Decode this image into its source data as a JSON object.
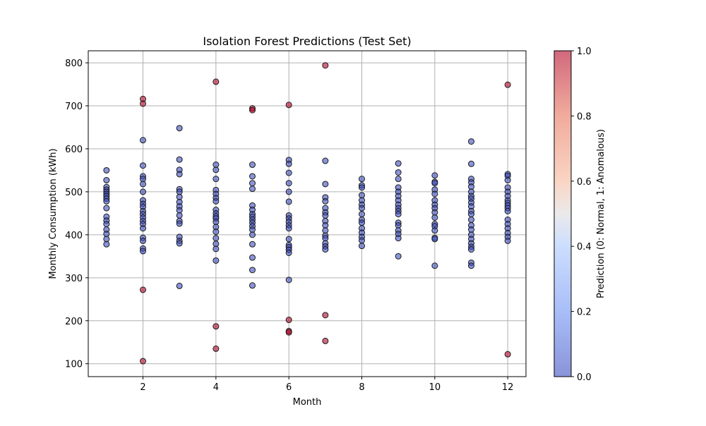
{
  "chart_data": {
    "type": "scatter",
    "title": "Isolation Forest Predictions (Test Set)",
    "xlabel": "Month",
    "ylabel": "Monthly Consumption (kWh)",
    "xlim": [
      0.5,
      12.5
    ],
    "ylim": [
      70,
      828
    ],
    "xticks": [
      2,
      4,
      6,
      8,
      10,
      12
    ],
    "yticks": [
      100,
      200,
      300,
      400,
      500,
      600,
      700,
      800
    ],
    "grid": true,
    "colorbar": {
      "label": "Prediction (0: Normal, 1: Anomalous)",
      "range": [
        0.0,
        1.0
      ],
      "ticks": [
        "0.0",
        "0.2",
        "0.4",
        "0.6",
        "0.8",
        "1.0"
      ],
      "colormap": "coolwarm",
      "alpha": 0.6
    },
    "colors": {
      "normal": "#3b4cc0",
      "anomalous": "#b40426"
    },
    "series": [
      {
        "prediction": 0,
        "points": [
          [
            1,
            550
          ],
          [
            1,
            527
          ],
          [
            1,
            511
          ],
          [
            1,
            505
          ],
          [
            1,
            500
          ],
          [
            1,
            495
          ],
          [
            1,
            490
          ],
          [
            1,
            484
          ],
          [
            1,
            478
          ],
          [
            1,
            462
          ],
          [
            1,
            442
          ],
          [
            1,
            433
          ],
          [
            1,
            425
          ],
          [
            1,
            412
          ],
          [
            1,
            402
          ],
          [
            1,
            390
          ],
          [
            1,
            378
          ],
          [
            2,
            620
          ],
          [
            2,
            561
          ],
          [
            2,
            536
          ],
          [
            2,
            530
          ],
          [
            2,
            518
          ],
          [
            2,
            500
          ],
          [
            2,
            480
          ],
          [
            2,
            472
          ],
          [
            2,
            465
          ],
          [
            2,
            455
          ],
          [
            2,
            448
          ],
          [
            2,
            440
          ],
          [
            2,
            432
          ],
          [
            2,
            425
          ],
          [
            2,
            415
          ],
          [
            2,
            393
          ],
          [
            2,
            386
          ],
          [
            2,
            368
          ],
          [
            2,
            362
          ],
          [
            3,
            648
          ],
          [
            3,
            575
          ],
          [
            3,
            551
          ],
          [
            3,
            541
          ],
          [
            3,
            506
          ],
          [
            3,
            500
          ],
          [
            3,
            488
          ],
          [
            3,
            476
          ],
          [
            3,
            466
          ],
          [
            3,
            457
          ],
          [
            3,
            445
          ],
          [
            3,
            432
          ],
          [
            3,
            426
          ],
          [
            3,
            395
          ],
          [
            3,
            386
          ],
          [
            3,
            380
          ],
          [
            3,
            281
          ],
          [
            4,
            563
          ],
          [
            4,
            551
          ],
          [
            4,
            530
          ],
          [
            4,
            504
          ],
          [
            4,
            495
          ],
          [
            4,
            486
          ],
          [
            4,
            478
          ],
          [
            4,
            458
          ],
          [
            4,
            450
          ],
          [
            4,
            443
          ],
          [
            4,
            438
          ],
          [
            4,
            430
          ],
          [
            4,
            418
          ],
          [
            4,
            407
          ],
          [
            4,
            392
          ],
          [
            4,
            379
          ],
          [
            4,
            367
          ],
          [
            4,
            340
          ],
          [
            5,
            563
          ],
          [
            5,
            536
          ],
          [
            5,
            520
          ],
          [
            5,
            507
          ],
          [
            5,
            468
          ],
          [
            5,
            458
          ],
          [
            5,
            448
          ],
          [
            5,
            442
          ],
          [
            5,
            435
          ],
          [
            5,
            428
          ],
          [
            5,
            420
          ],
          [
            5,
            412
          ],
          [
            5,
            400
          ],
          [
            5,
            378
          ],
          [
            5,
            347
          ],
          [
            5,
            318
          ],
          [
            5,
            282
          ],
          [
            6,
            574
          ],
          [
            6,
            565
          ],
          [
            6,
            544
          ],
          [
            6,
            520
          ],
          [
            6,
            500
          ],
          [
            6,
            477
          ],
          [
            6,
            445
          ],
          [
            6,
            438
          ],
          [
            6,
            430
          ],
          [
            6,
            422
          ],
          [
            6,
            415
          ],
          [
            6,
            390
          ],
          [
            6,
            376
          ],
          [
            6,
            371
          ],
          [
            6,
            365
          ],
          [
            6,
            358
          ],
          [
            6,
            295
          ],
          [
            7,
            572
          ],
          [
            7,
            518
          ],
          [
            7,
            487
          ],
          [
            7,
            478
          ],
          [
            7,
            462
          ],
          [
            7,
            452
          ],
          [
            7,
            445
          ],
          [
            7,
            432
          ],
          [
            7,
            422
          ],
          [
            7,
            410
          ],
          [
            7,
            398
          ],
          [
            7,
            392
          ],
          [
            7,
            380
          ],
          [
            7,
            373
          ],
          [
            7,
            366
          ],
          [
            8,
            530
          ],
          [
            8,
            515
          ],
          [
            8,
            510
          ],
          [
            8,
            492
          ],
          [
            8,
            480
          ],
          [
            8,
            470
          ],
          [
            8,
            462
          ],
          [
            8,
            448
          ],
          [
            8,
            435
          ],
          [
            8,
            428
          ],
          [
            8,
            415
          ],
          [
            8,
            405
          ],
          [
            8,
            395
          ],
          [
            8,
            387
          ],
          [
            8,
            374
          ],
          [
            9,
            566
          ],
          [
            9,
            545
          ],
          [
            9,
            530
          ],
          [
            9,
            510
          ],
          [
            9,
            500
          ],
          [
            9,
            490
          ],
          [
            9,
            480
          ],
          [
            9,
            470
          ],
          [
            9,
            462
          ],
          [
            9,
            455
          ],
          [
            9,
            448
          ],
          [
            9,
            428
          ],
          [
            9,
            422
          ],
          [
            9,
            410
          ],
          [
            9,
            402
          ],
          [
            9,
            392
          ],
          [
            9,
            350
          ],
          [
            10,
            538
          ],
          [
            10,
            523
          ],
          [
            10,
            520
          ],
          [
            10,
            505
          ],
          [
            10,
            495
          ],
          [
            10,
            480
          ],
          [
            10,
            470
          ],
          [
            10,
            462
          ],
          [
            10,
            452
          ],
          [
            10,
            440
          ],
          [
            10,
            425
          ],
          [
            10,
            420
          ],
          [
            10,
            410
          ],
          [
            10,
            393
          ],
          [
            10,
            390
          ],
          [
            10,
            328
          ],
          [
            11,
            617
          ],
          [
            11,
            565
          ],
          [
            11,
            530
          ],
          [
            11,
            522
          ],
          [
            11,
            512
          ],
          [
            11,
            500
          ],
          [
            11,
            490
          ],
          [
            11,
            484
          ],
          [
            11,
            475
          ],
          [
            11,
            466
          ],
          [
            11,
            455
          ],
          [
            11,
            448
          ],
          [
            11,
            435
          ],
          [
            11,
            422
          ],
          [
            11,
            412
          ],
          [
            11,
            400
          ],
          [
            11,
            390
          ],
          [
            11,
            380
          ],
          [
            11,
            372
          ],
          [
            11,
            366
          ],
          [
            11,
            335
          ],
          [
            11,
            328
          ],
          [
            12,
            541
          ],
          [
            12,
            537
          ],
          [
            12,
            527
          ],
          [
            12,
            510
          ],
          [
            12,
            500
          ],
          [
            12,
            490
          ],
          [
            12,
            480
          ],
          [
            12,
            474
          ],
          [
            12,
            468
          ],
          [
            12,
            462
          ],
          [
            12,
            455
          ],
          [
            12,
            435
          ],
          [
            12,
            425
          ],
          [
            12,
            415
          ],
          [
            12,
            404
          ],
          [
            12,
            395
          ],
          [
            12,
            386
          ]
        ]
      },
      {
        "prediction": 1,
        "points": [
          [
            2,
            716
          ],
          [
            2,
            705
          ],
          [
            2,
            272
          ],
          [
            2,
            106
          ],
          [
            4,
            756
          ],
          [
            4,
            187
          ],
          [
            4,
            135
          ],
          [
            5,
            694
          ],
          [
            5,
            690
          ],
          [
            6,
            702
          ],
          [
            6,
            202
          ],
          [
            6,
            176
          ],
          [
            6,
            173
          ],
          [
            7,
            794
          ],
          [
            7,
            213
          ],
          [
            7,
            153
          ],
          [
            12,
            749
          ],
          [
            12,
            122
          ]
        ]
      }
    ]
  }
}
